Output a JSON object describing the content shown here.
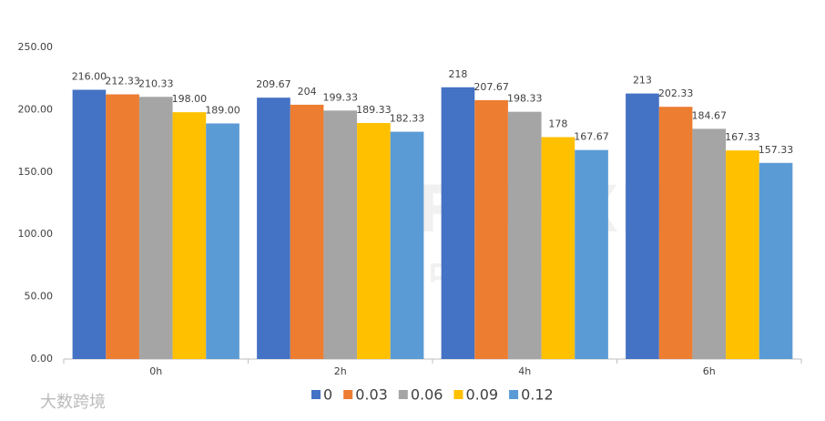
{
  "chart_data": {
    "type": "bar",
    "categories": [
      "0h",
      "2h",
      "4h",
      "6h"
    ],
    "series": [
      {
        "name": "0",
        "color": "#4472c4",
        "values": [
          216,
          209.67,
          218,
          213
        ],
        "value_labels": [
          "216.00",
          "209.67",
          "218",
          "213"
        ]
      },
      {
        "name": "0.03",
        "color": "#ed7d31",
        "values": [
          212.33,
          204,
          207.67,
          202.33
        ],
        "value_labels": [
          "212.33",
          "204",
          "207.67",
          "202.33"
        ]
      },
      {
        "name": "0.06",
        "color": "#a5a5a5",
        "values": [
          210.33,
          199.33,
          198.33,
          184.67
        ],
        "value_labels": [
          "210.33",
          "199.33",
          "198.33",
          "184.67"
        ]
      },
      {
        "name": "0.09",
        "color": "#ffc000",
        "values": [
          198,
          189.33,
          178,
          167.33
        ],
        "value_labels": [
          "198.00",
          "189.33",
          "178",
          "167.33"
        ]
      },
      {
        "name": "0.12",
        "color": "#5b9bd5",
        "values": [
          189,
          182.33,
          167.67,
          157.33
        ],
        "value_labels": [
          "189.00",
          "182.33",
          "167.67",
          "157.33"
        ]
      }
    ],
    "ylim": [
      0,
      250
    ],
    "yticks": [
      {
        "value": 0,
        "label": "0.00"
      },
      {
        "value": 50,
        "label": "50.00"
      },
      {
        "value": 100,
        "label": "100.00"
      },
      {
        "value": 150,
        "label": "150.00"
      },
      {
        "value": 200,
        "label": "200.00"
      },
      {
        "value": 250,
        "label": "250.00"
      }
    ],
    "grid": false,
    "legend": "bottom",
    "watermarks": [
      "RUNXIN",
      "中科荣信",
      "大数跨境"
    ]
  }
}
